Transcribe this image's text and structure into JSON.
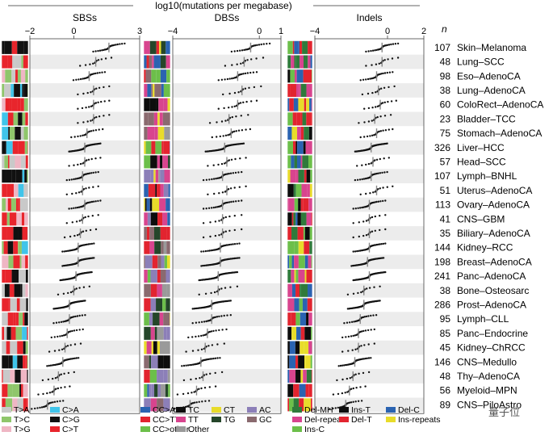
{
  "chart_data": {
    "type": "scatter",
    "title": "log10(mutations per megabase)",
    "n_label": "n",
    "panels": [
      {
        "name": "SBSs",
        "xlim": [
          -2,
          3
        ],
        "ticks": [
          "−2",
          "0",
          "3"
        ],
        "tick_values": [
          -2,
          0,
          3
        ]
      },
      {
        "name": "DBSs",
        "xlim": [
          -4,
          1
        ],
        "ticks": [
          "−4",
          "0",
          "1"
        ],
        "tick_values": [
          -4,
          0,
          1
        ]
      },
      {
        "name": "Indels",
        "xlim": [
          -4,
          2
        ],
        "ticks": [
          "−4",
          "0",
          "2"
        ],
        "tick_values": [
          -4,
          0,
          2
        ]
      }
    ],
    "cancers": [
      {
        "name": "Skin–Melanoma",
        "n": "107",
        "median": [
          1.6,
          -0.4,
          -0.3
        ]
      },
      {
        "name": "Lung–SCC",
        "n": "48",
        "median": [
          1.0,
          -0.7,
          -0.3
        ]
      },
      {
        "name": "Eso–AdenoCA",
        "n": "98",
        "median": [
          0.7,
          -1.0,
          -0.6
        ]
      },
      {
        "name": "Lung–AdenoCA",
        "n": "38",
        "median": [
          0.9,
          -0.8,
          -0.5
        ]
      },
      {
        "name": "ColoRect–AdenoCA",
        "n": "60",
        "median": [
          0.9,
          -1.0,
          -0.4
        ]
      },
      {
        "name": "Bladder–TCC",
        "n": "23",
        "median": [
          0.9,
          -1.4,
          -0.7
        ]
      },
      {
        "name": "Stomach–AdenoCA",
        "n": "75",
        "median": [
          0.6,
          -1.3,
          -0.6
        ]
      },
      {
        "name": "Liver–HCC",
        "n": "326",
        "median": [
          0.5,
          -1.6,
          -0.9
        ]
      },
      {
        "name": "Head–SCC",
        "n": "57",
        "median": [
          0.5,
          -1.5,
          -0.8
        ]
      },
      {
        "name": "Lymph–BNHL",
        "n": "107",
        "median": [
          0.4,
          -1.7,
          -0.9
        ]
      },
      {
        "name": "Uterus–AdenoCA",
        "n": "51",
        "median": [
          0.4,
          -1.5,
          -0.6
        ]
      },
      {
        "name": "Ovary–AdenoCA",
        "n": "113",
        "median": [
          0.5,
          -1.7,
          -1.0
        ]
      },
      {
        "name": "CNS–GBM",
        "n": "41",
        "median": [
          0.4,
          -1.7,
          -1.0
        ]
      },
      {
        "name": "Biliary–AdenoCA",
        "n": "35",
        "median": [
          0.3,
          -1.7,
          -1.0
        ]
      },
      {
        "name": "Kidney–RCC",
        "n": "144",
        "median": [
          0.2,
          -1.8,
          -1.0
        ]
      },
      {
        "name": "Breast–AdenoCA",
        "n": "198",
        "median": [
          0.2,
          -1.8,
          -1.1
        ]
      },
      {
        "name": "Panc–AdenoCA",
        "n": "241",
        "median": [
          0.1,
          -1.9,
          -1.0
        ]
      },
      {
        "name": "Bone–Osteosarc",
        "n": "38",
        "median": [
          0.0,
          -1.9,
          -1.3
        ]
      },
      {
        "name": "Prost–AdenoCA",
        "n": "286",
        "median": [
          -0.2,
          -2.2,
          -1.3
        ]
      },
      {
        "name": "Lymph–CLL",
        "n": "95",
        "median": [
          -0.2,
          -2.2,
          -1.5
        ]
      },
      {
        "name": "Panc–Endocrine",
        "n": "85",
        "median": [
          -0.3,
          -2.4,
          -1.6
        ]
      },
      {
        "name": "Kidney–ChRCC",
        "n": "45",
        "median": [
          -0.4,
          -2.5,
          -1.6
        ]
      },
      {
        "name": "CNS–Medullo",
        "n": "146",
        "median": [
          -0.5,
          -2.7,
          -1.8
        ]
      },
      {
        "name": "Thy–AdenoCA",
        "n": "48",
        "median": [
          -0.7,
          -2.6,
          -1.9
        ]
      },
      {
        "name": "Myeloid–MPN",
        "n": "56",
        "median": [
          -0.9,
          -2.9,
          -2.1
        ]
      },
      {
        "name": "CNS–PiloAstro",
        "n": "89",
        "median": [
          -1.2,
          -3.2,
          -2.3
        ]
      }
    ],
    "legends": {
      "sbs": [
        {
          "label": "T>A",
          "color": "#c9c9c9"
        },
        {
          "label": "C>A",
          "color": "#40c4ea"
        },
        {
          "label": "T>C",
          "color": "#8fc66b"
        },
        {
          "label": "C>G",
          "color": "#111111"
        },
        {
          "label": "T>G",
          "color": "#efb6c4"
        },
        {
          "label": "C>T",
          "color": "#e8252c"
        }
      ],
      "dbs": [
        {
          "label": "CC>AA",
          "color": "#2a63b1"
        },
        {
          "label": "TC",
          "color": "#0d0d0d"
        },
        {
          "label": "CT",
          "color": "#e8dc2a"
        },
        {
          "label": "AC",
          "color": "#8c7fb8"
        },
        {
          "label": "CC>TT",
          "color": "#e2242f"
        },
        {
          "label": "TT",
          "color": "#d8448e"
        },
        {
          "label": "TG",
          "color": "#25462a"
        },
        {
          "label": "GC",
          "color": "#8a6a6f"
        },
        {
          "label": "CC>other",
          "color": "#6cbf4a"
        },
        {
          "label": "Other",
          "color": "#9a9a9a"
        }
      ],
      "indels": [
        {
          "label": "Del-MH",
          "color": "#2f7a3b"
        },
        {
          "label": "Ins-T",
          "color": "#0d0d0d"
        },
        {
          "label": "Del-C",
          "color": "#2a63b1"
        },
        {
          "label": "Del-repeats",
          "color": "#d8448e"
        },
        {
          "label": "Del-T",
          "color": "#e2242f"
        },
        {
          "label": "Ins-repeats",
          "color": "#e8dc2a"
        },
        {
          "label": "Ins-C",
          "color": "#6cbf4a"
        }
      ]
    }
  },
  "watermark": {
    "text": "量子位"
  }
}
